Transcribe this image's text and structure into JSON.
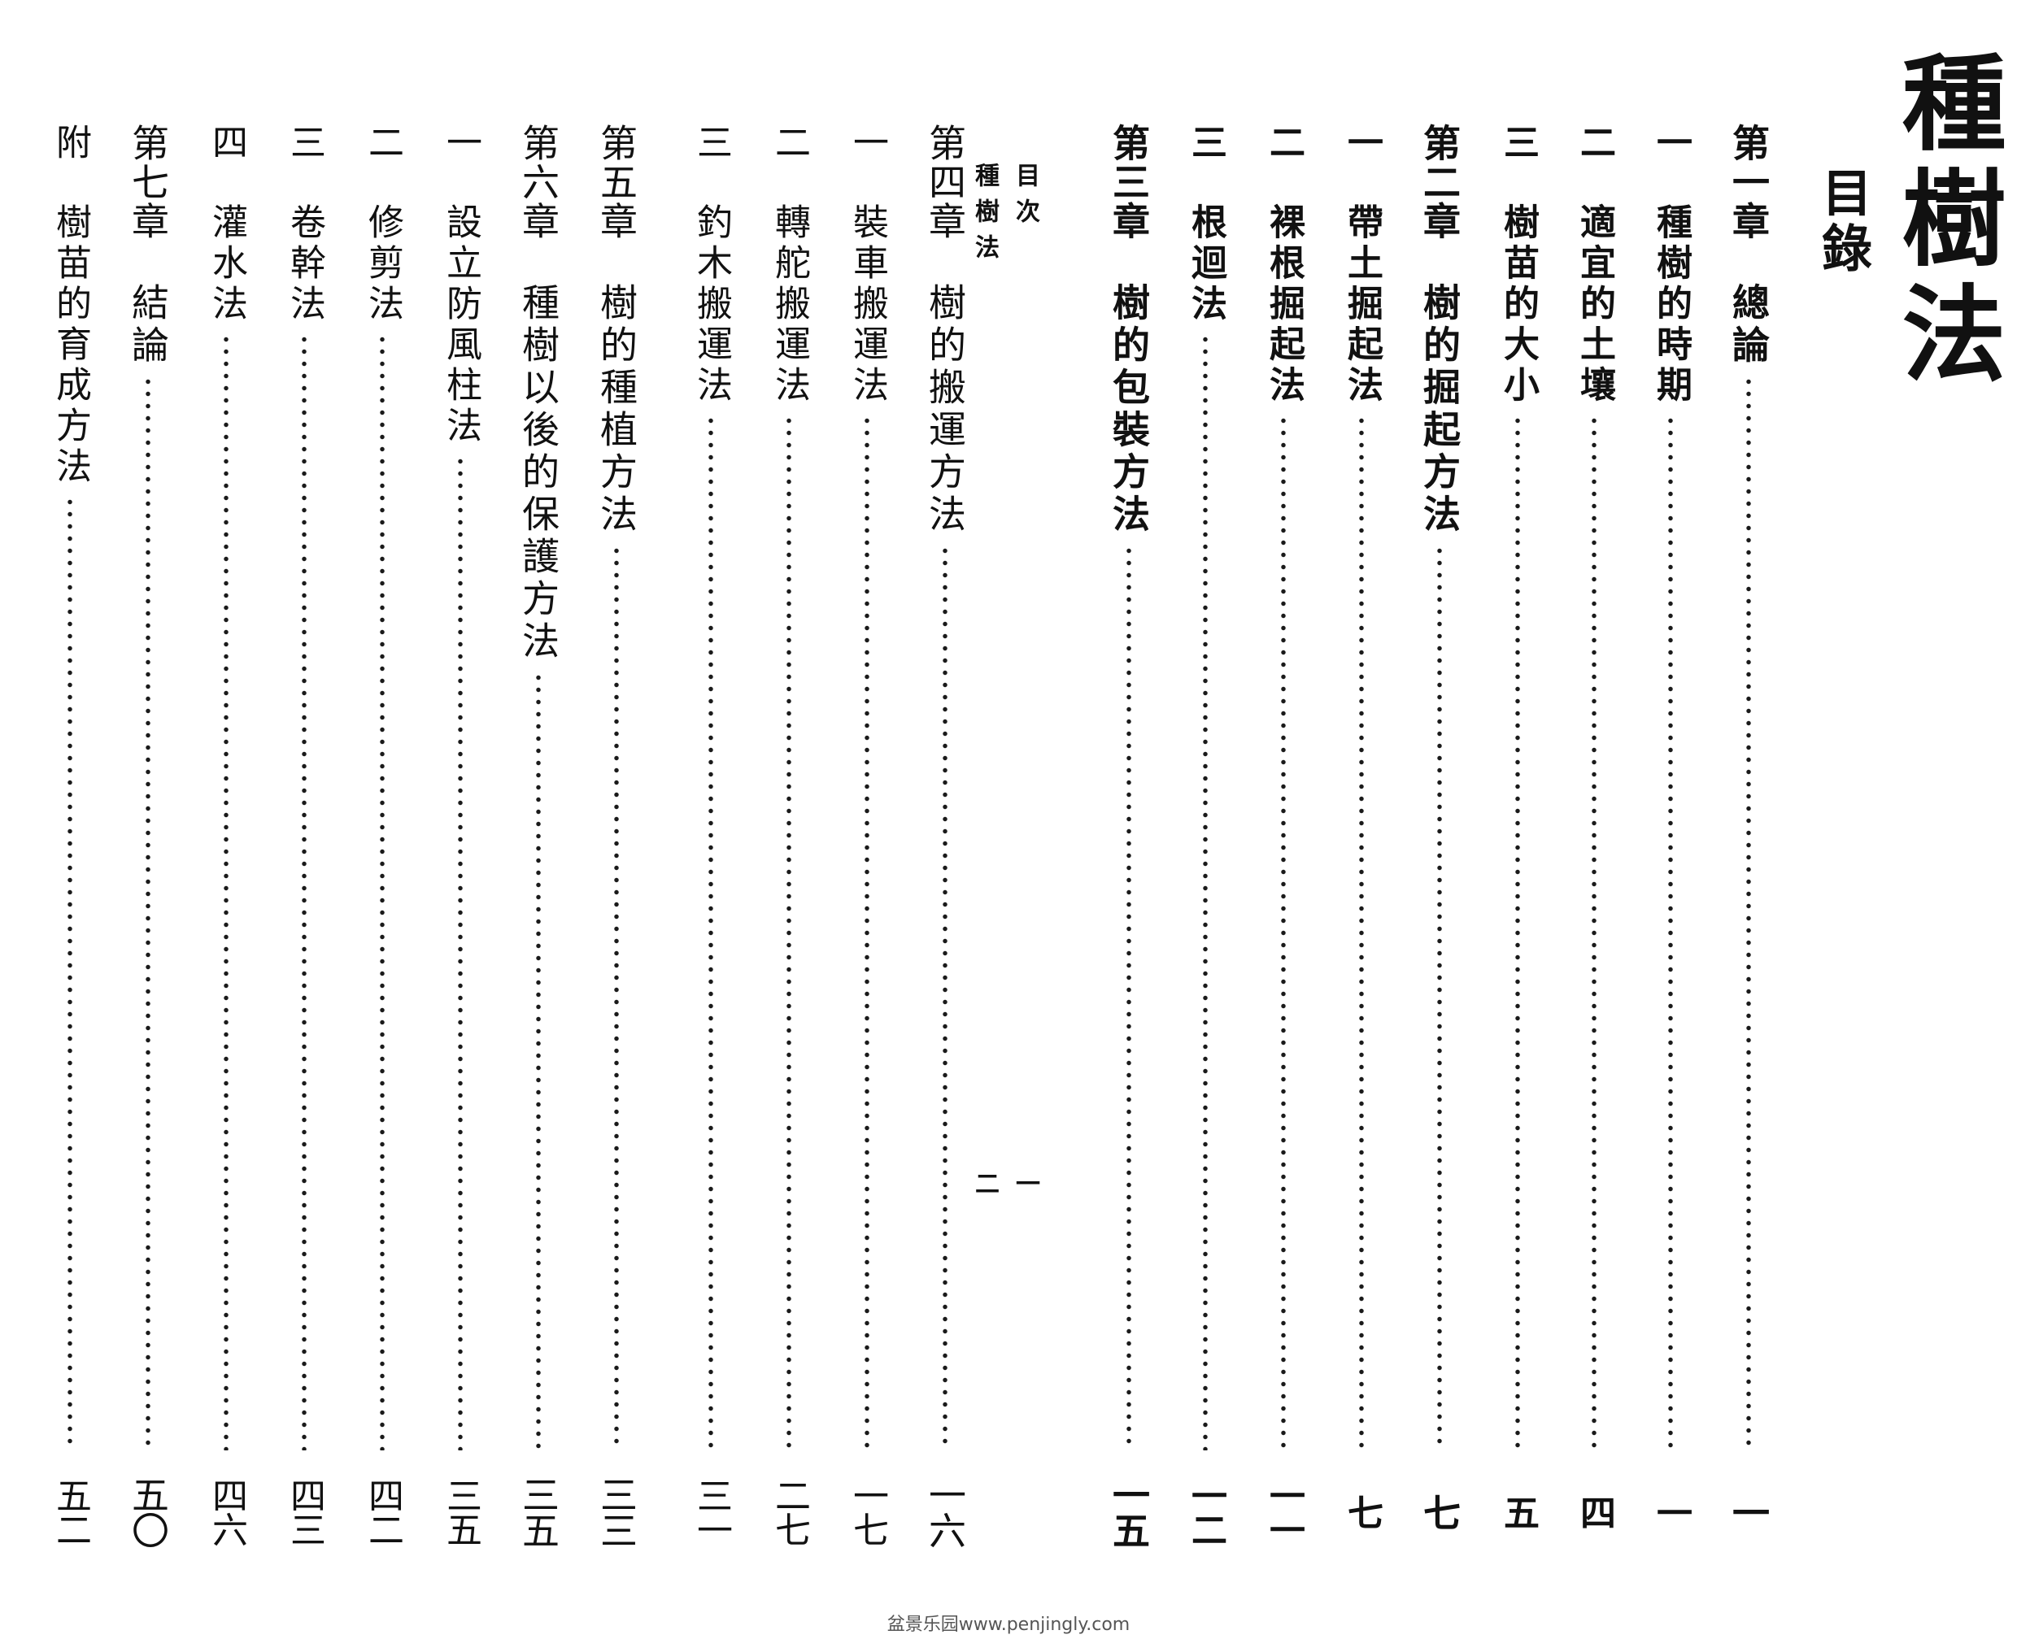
{
  "book_title": "種樹法",
  "toc_heading": "目錄",
  "entries": [
    {
      "num": "第一章",
      "title": "總論",
      "page": "一",
      "type": "chapter"
    },
    {
      "num": "一",
      "title": "種樹的時期",
      "page": "一",
      "type": "section"
    },
    {
      "num": "二",
      "title": "適宜的土壤",
      "page": "四",
      "type": "section"
    },
    {
      "num": "三",
      "title": "樹苗的大小",
      "page": "五",
      "type": "section"
    },
    {
      "num": "第二章",
      "title": "樹的掘起方法",
      "page": "七",
      "type": "chapter"
    },
    {
      "num": "一",
      "title": "帶土掘起法",
      "page": "七",
      "type": "section"
    },
    {
      "num": "二",
      "title": "裸根掘起法",
      "page": "一一",
      "type": "section"
    },
    {
      "num": "三",
      "title": "根迴法",
      "page": "一二",
      "type": "section"
    },
    {
      "num": "第三章",
      "title": "樹的包裝方法",
      "page": "一五",
      "type": "chapter"
    },
    {
      "num": "第四章",
      "title": "樹的搬運方法",
      "page": "一六",
      "type": "chapter"
    },
    {
      "num": "一",
      "title": "裝車搬運法",
      "page": "一七",
      "type": "section"
    },
    {
      "num": "二",
      "title": "轉舵搬運法",
      "page": "二七",
      "type": "section"
    },
    {
      "num": "三",
      "title": "釣木搬運法",
      "page": "三一",
      "type": "section"
    },
    {
      "num": "第五章",
      "title": "樹的種植方法",
      "page": "三三",
      "type": "chapter"
    },
    {
      "num": "第六章",
      "title": "種樹以後的保護方法",
      "page": "三五",
      "type": "chapter"
    },
    {
      "num": "一",
      "title": "設立防風柱法",
      "page": "三五",
      "type": "section"
    },
    {
      "num": "二",
      "title": "修剪法",
      "page": "四二",
      "type": "section"
    },
    {
      "num": "三",
      "title": "卷幹法",
      "page": "四三",
      "type": "section"
    },
    {
      "num": "四",
      "title": "灌水法",
      "page": "四六",
      "type": "section"
    },
    {
      "num": "第七章",
      "title": "結論",
      "page": "五〇",
      "type": "chapter"
    },
    {
      "num": "附",
      "title": "樹苗的育成方法",
      "page": "五二",
      "type": "appendix"
    }
  ],
  "bleed_through": {
    "col1": "目次",
    "col2": "種樹法",
    "page1": "一",
    "page2": "二"
  },
  "watermark": "盆景乐园www.penjingly.com"
}
